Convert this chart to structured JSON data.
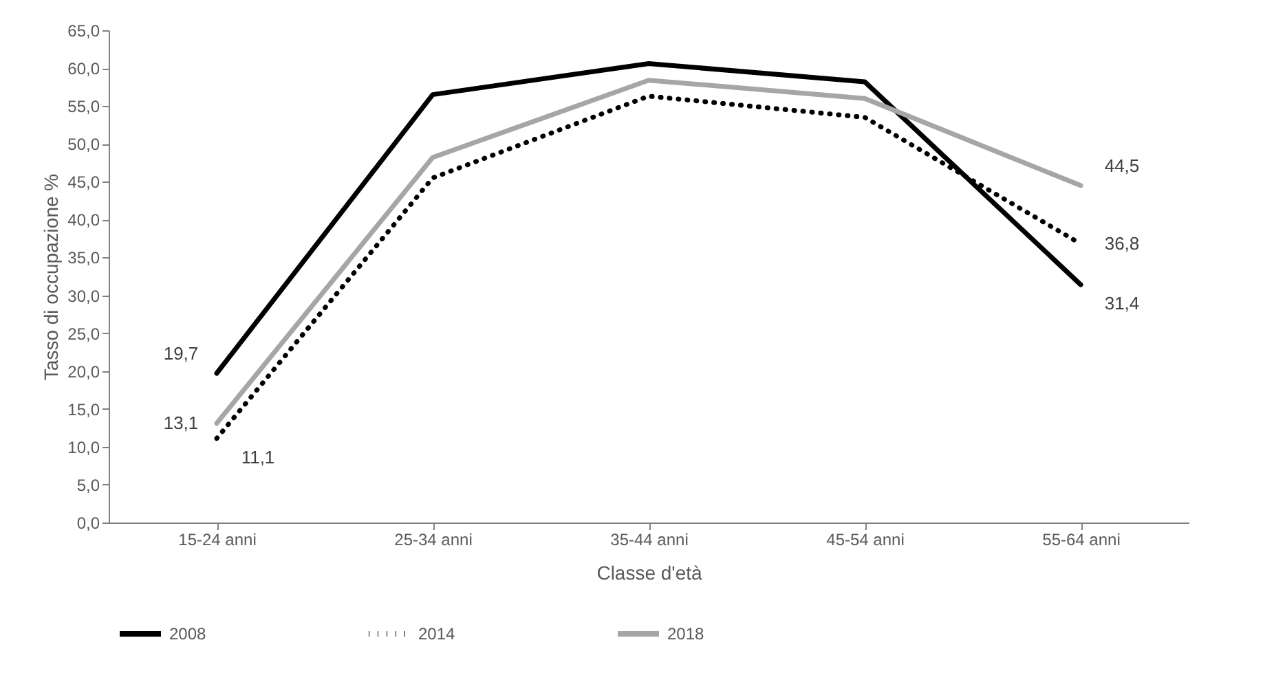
{
  "chart_data": {
    "type": "line",
    "xlabel": "Classe d'età",
    "ylabel": "Tasso di occupazione %",
    "categories": [
      "15-24 anni",
      "25-34 anni",
      "35-44 anni",
      "45-54 anni",
      "55-64 anni"
    ],
    "ylim": [
      0,
      65
    ],
    "yticks": [
      {
        "value": 0,
        "label": "0,0"
      },
      {
        "value": 5,
        "label": "5,0"
      },
      {
        "value": 10,
        "label": "10,0"
      },
      {
        "value": 15,
        "label": "15,0"
      },
      {
        "value": 20,
        "label": "20,0"
      },
      {
        "value": 25,
        "label": "25,0"
      },
      {
        "value": 30,
        "label": "30,0"
      },
      {
        "value": 35,
        "label": "35,0"
      },
      {
        "value": 40,
        "label": "40,0"
      },
      {
        "value": 45,
        "label": "45,0"
      },
      {
        "value": 50,
        "label": "50,0"
      },
      {
        "value": 55,
        "label": "55,0"
      },
      {
        "value": 60,
        "label": "60,0"
      },
      {
        "value": 65,
        "label": "65,0"
      }
    ],
    "grid": false,
    "legend": "bottom",
    "marker": "none",
    "series": [
      {
        "name": "2008",
        "color": "#000000",
        "line_style": "solid",
        "values": [
          19.7,
          56.5,
          60.6,
          58.2,
          31.4
        ],
        "value_labels": [
          "19,7",
          null,
          null,
          null,
          "31,4"
        ]
      },
      {
        "name": "2014",
        "color": "#000000",
        "line_style": "dotted",
        "values": [
          11.1,
          45.5,
          56.3,
          53.5,
          36.8
        ],
        "value_labels": [
          "11,1",
          null,
          null,
          null,
          "36,8"
        ]
      },
      {
        "name": "2018",
        "color": "#a6a6a6",
        "line_style": "solid",
        "values": [
          13.1,
          48.2,
          58.4,
          56.0,
          44.5
        ],
        "value_labels": [
          "13,1",
          null,
          null,
          null,
          "44,5"
        ]
      }
    ]
  }
}
